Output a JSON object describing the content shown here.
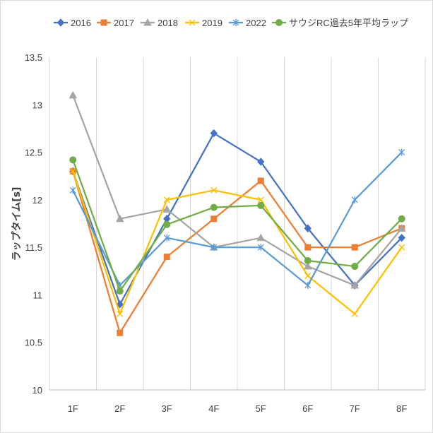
{
  "chart_data": {
    "type": "line",
    "title": "",
    "xlabel": "",
    "ylabel": "ラップタイム[s]",
    "categories": [
      "1F",
      "2F",
      "3F",
      "4F",
      "5F",
      "6F",
      "7F",
      "8F"
    ],
    "ylim": [
      10,
      13.5
    ],
    "yticks": [
      "10",
      "10.5",
      "11",
      "11.5",
      "12",
      "12.5",
      "13",
      "13.5"
    ],
    "grid": "vertical",
    "legend": "top",
    "series": [
      {
        "name": "2016",
        "color": "#4472C4",
        "marker": "diamond",
        "values": [
          12.3,
          10.9,
          11.8,
          12.7,
          12.4,
          11.7,
          11.1,
          11.6
        ]
      },
      {
        "name": "2017",
        "color": "#ED7D31",
        "marker": "square",
        "values": [
          12.3,
          10.6,
          11.4,
          11.8,
          12.2,
          11.5,
          11.5,
          11.7
        ]
      },
      {
        "name": "2018",
        "color": "#A5A5A5",
        "marker": "triangle",
        "values": [
          13.1,
          11.8,
          11.9,
          11.5,
          11.6,
          11.3,
          11.1,
          11.7
        ]
      },
      {
        "name": "2019",
        "color": "#FFC000",
        "marker": "x",
        "values": [
          12.3,
          10.8,
          12.0,
          12.1,
          12.0,
          11.2,
          10.8,
          11.5
        ]
      },
      {
        "name": "2022",
        "color": "#5B9BD5",
        "marker": "star",
        "values": [
          12.1,
          11.1,
          11.6,
          11.5,
          11.5,
          11.1,
          12.0,
          12.5
        ]
      },
      {
        "name": "サウジRC過去5年平均ラップ",
        "color": "#70AD47",
        "marker": "circle",
        "values": [
          12.42,
          11.04,
          11.74,
          11.92,
          11.94,
          11.36,
          11.3,
          11.8
        ]
      }
    ]
  }
}
